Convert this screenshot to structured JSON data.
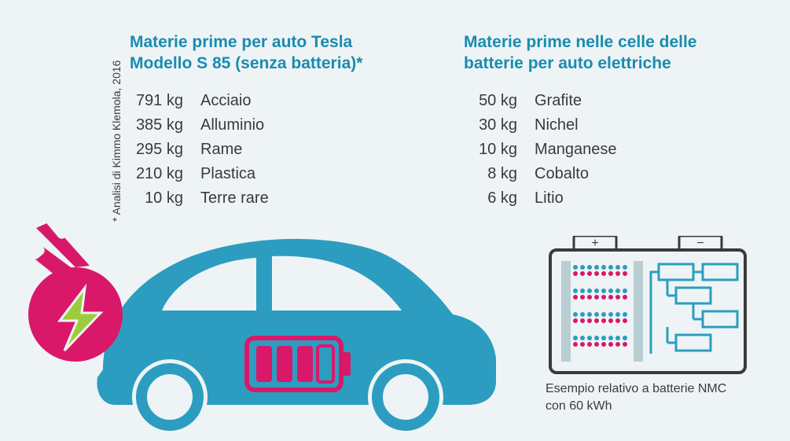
{
  "colors": {
    "heading": "#1a8bb0",
    "text": "#3a3a3a",
    "background": "#eef4f5",
    "car_body": "#2c9dc0",
    "plug_body": "#d91869",
    "bolt": "#9ccc3c",
    "battery_outline": "#3a3a3a",
    "dot_blue": "#2c9dc0",
    "dot_pink": "#d91869",
    "cell_box": "#2c9dc0",
    "car_battery": "#d91869"
  },
  "left": {
    "heading_line1": "Materie prime per auto Tesla",
    "heading_line2": "Modello S 85 (senza batteria)*",
    "rows": [
      {
        "qty": "791 kg",
        "name": "Acciaio"
      },
      {
        "qty": "385 kg",
        "name": "Alluminio"
      },
      {
        "qty": "295 kg",
        "name": "Rame"
      },
      {
        "qty": "210 kg",
        "name": "Plastica"
      },
      {
        "qty": "10 kg",
        "name": "Terre rare"
      }
    ]
  },
  "right": {
    "heading_line1": "Materie prime nelle celle delle",
    "heading_line2": "batterie per auto elettriche",
    "rows": [
      {
        "qty": "50 kg",
        "name": "Grafite"
      },
      {
        "qty": "30 kg",
        "name": "Nichel"
      },
      {
        "qty": "10 kg",
        "name": "Manganese"
      },
      {
        "qty": "8 kg",
        "name": "Cobalto"
      },
      {
        "qty": "6 kg",
        "name": "Litio"
      }
    ]
  },
  "vnote": "* Analisi di Kimmo Klemola, 2016",
  "caption_line1": "Esempio relativo a batterie NMC",
  "caption_line2": "con 60 kWh",
  "battery_terminals": {
    "plus": "+",
    "minus": "−"
  }
}
